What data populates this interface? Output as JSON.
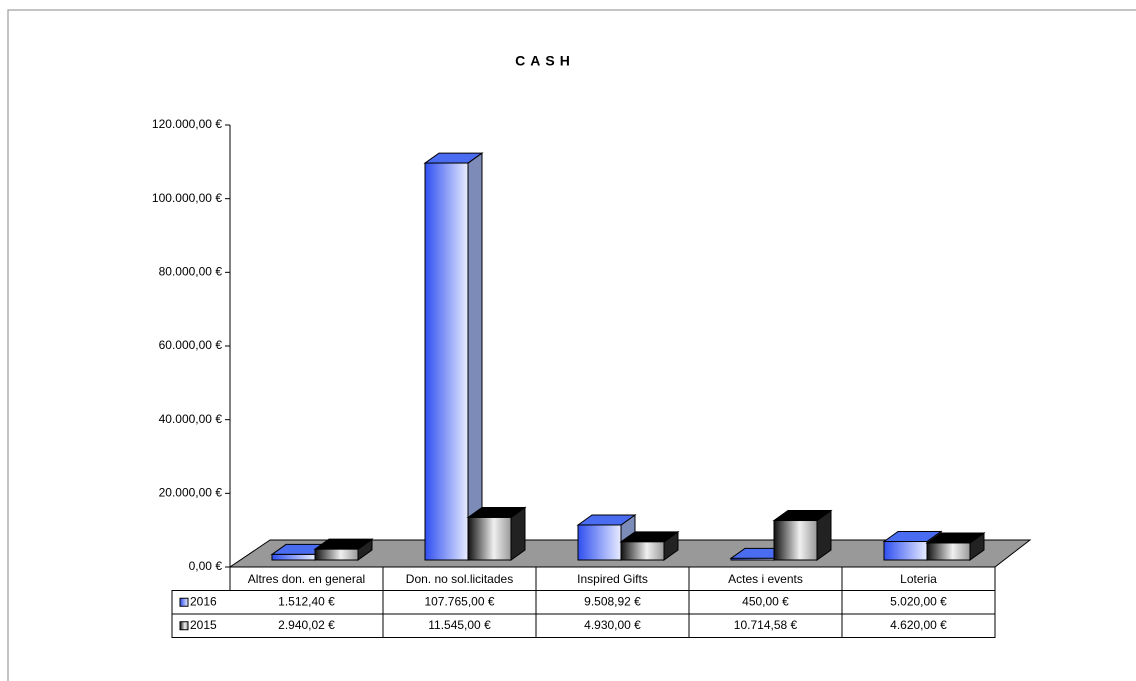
{
  "chart_data": {
    "type": "bar3d",
    "title": "CASH",
    "categories": [
      "Altres don. en general",
      "Don. no sol.licitades",
      "Inspired Gifts",
      "Actes i events",
      "Loteria"
    ],
    "series": [
      {
        "name": "2016",
        "color": "#4a6cf0",
        "values": [
          1512.4,
          107765.0,
          9508.92,
          450.0,
          5020.0
        ],
        "value_labels": [
          "1.512,40 €",
          "107.765,00 €",
          "9.508,92 €",
          "450,00 €",
          "5.020,00 €"
        ]
      },
      {
        "name": "2015",
        "color": "#333333",
        "values": [
          2940.02,
          11545.0,
          4930.0,
          10714.58,
          4620.0
        ],
        "value_labels": [
          "2.940,02 €",
          "11.545,00 €",
          "4.930,00 €",
          "10.714,58 €",
          "4.620,00 €"
        ]
      }
    ],
    "ylim": [
      0,
      120000
    ],
    "yticks": [
      {
        "value": 0,
        "label": "0,00 €"
      },
      {
        "value": 20000,
        "label": "20.000,00 €"
      },
      {
        "value": 40000,
        "label": "40.000,00 €"
      },
      {
        "value": 60000,
        "label": "60.000,00 €"
      },
      {
        "value": 80000,
        "label": "80.000,00 €"
      },
      {
        "value": 100000,
        "label": "100.000,00 €"
      },
      {
        "value": 120000,
        "label": "120.000,00 €"
      }
    ],
    "grid": false
  }
}
